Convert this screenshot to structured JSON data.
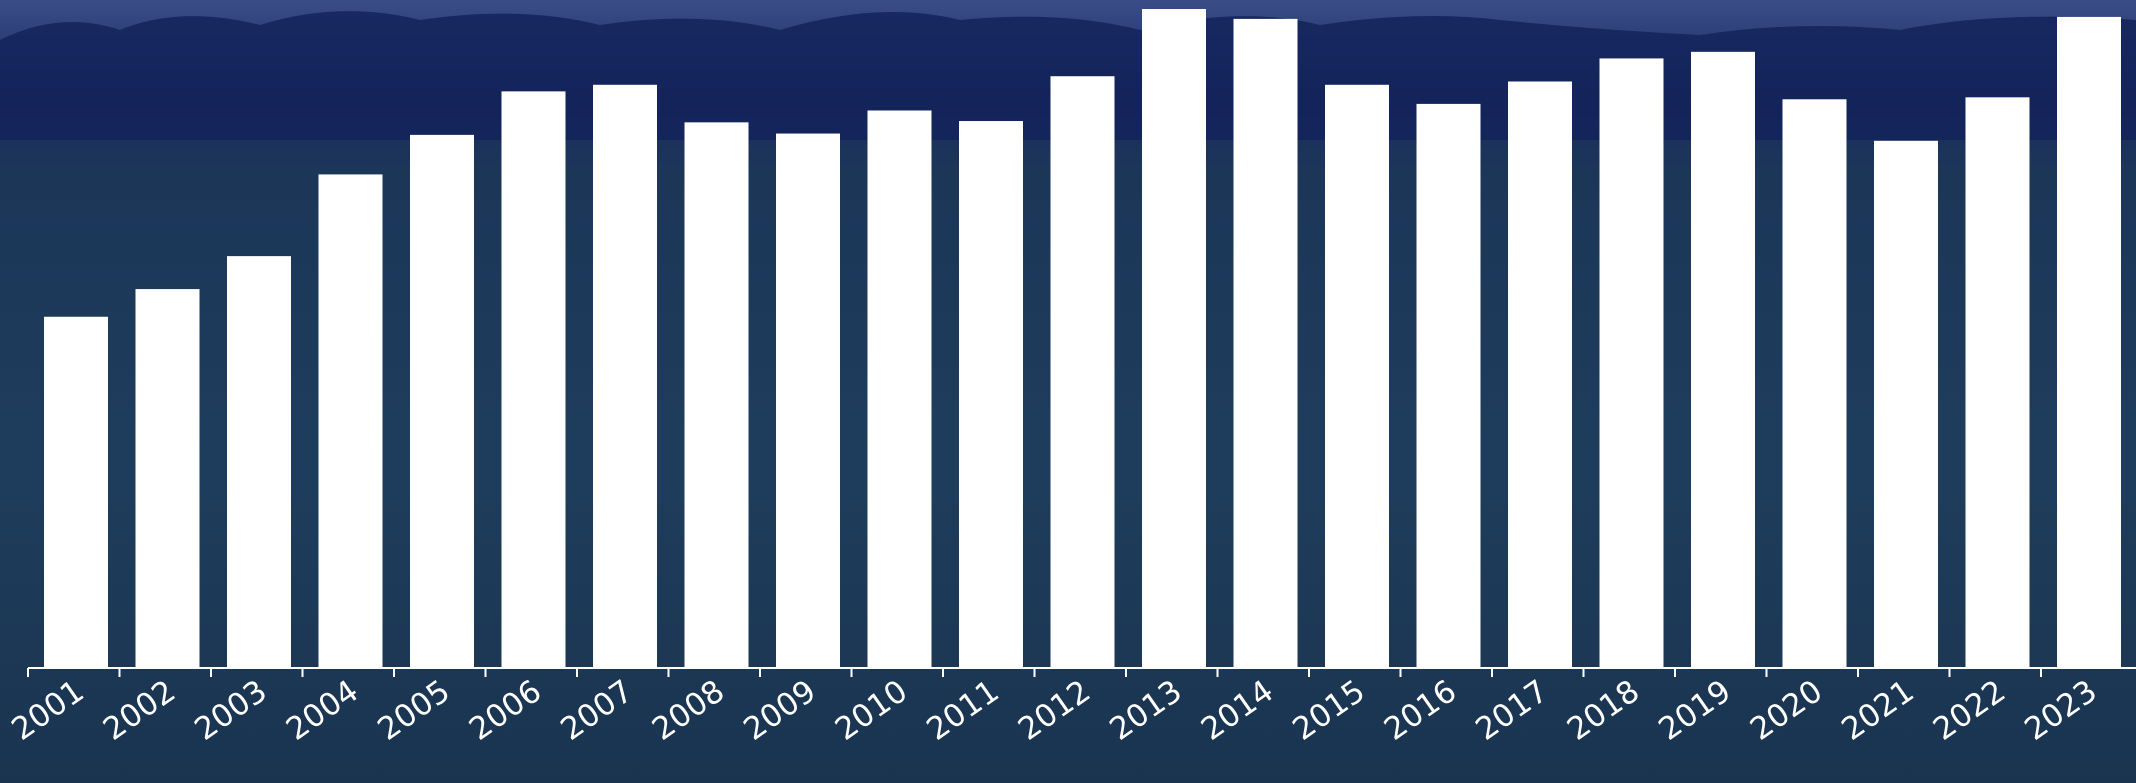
{
  "colors": {
    "sky": "#3d5088",
    "treeline": "#14245a",
    "grass": "#1d3a5a",
    "bar": "#ffffff",
    "axis": "#ffffff"
  },
  "chart_data": {
    "type": "bar",
    "title": "",
    "xlabel": "",
    "ylabel": "",
    "categories": [
      "2001",
      "2002",
      "2003",
      "2004",
      "2005",
      "2006",
      "2007",
      "2008",
      "2009",
      "2010",
      "2011",
      "2012",
      "2013",
      "2014",
      "2015",
      "2016",
      "2017",
      "2018",
      "2019",
      "2020",
      "2021",
      "2022",
      "2023"
    ],
    "values": [
      533,
      575,
      625,
      749,
      809,
      875,
      885,
      828,
      811,
      846,
      830,
      898,
      1000,
      985,
      885,
      856,
      890,
      925,
      935,
      863,
      800,
      866,
      988
    ],
    "ylim": [
      0,
      1000
    ],
    "grid": false,
    "legend": "none",
    "value_note": "relative values, no y-axis printed"
  }
}
